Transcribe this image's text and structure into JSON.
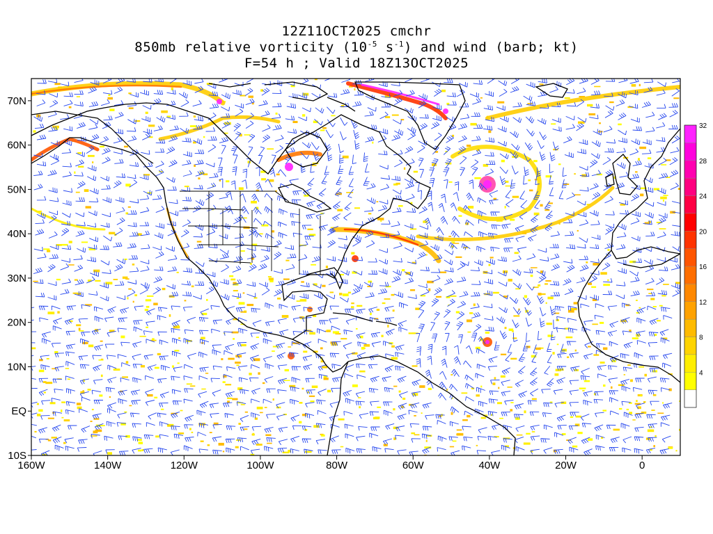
{
  "title": {
    "line1": "12Z11OCT2025 cmchr",
    "line2_pre": "850mb relative vorticity (10",
    "line2_exp1": "-5",
    "line2_mid": " s",
    "line2_exp2": "-1",
    "line2_post": ") and wind (barb; kt)",
    "line3": "F=54 h ; Valid 18Z13OCT2025"
  },
  "axes": {
    "lon_labels": [
      "160W",
      "140W",
      "120W",
      "100W",
      "80W",
      "60W",
      "40W",
      "20W",
      "0"
    ],
    "lat_labels": [
      "70N",
      "60N",
      "50N",
      "40N",
      "30N",
      "20N",
      "10N",
      "EQ",
      "10S"
    ]
  },
  "colorbar": {
    "labels": [
      "4",
      "8",
      "12",
      "16",
      "20",
      "24",
      "28",
      "32"
    ],
    "colors": [
      "#ffffff",
      "#ffff00",
      "#ffee00",
      "#ffd400",
      "#ffbb00",
      "#ffa200",
      "#ff8800",
      "#ff6e00",
      "#ff5500",
      "#ff3300",
      "#ff0000",
      "#ff0044",
      "#ff0080",
      "#ff00b0",
      "#ff00dd",
      "#ff22ff"
    ]
  },
  "map": {
    "barb_color": "#2244ee",
    "coast_color": "#000000",
    "features": [
      "extratropical cyclone near 52N 42W",
      "tropical system near 15N 42W",
      "frontal band off US east coast"
    ]
  }
}
